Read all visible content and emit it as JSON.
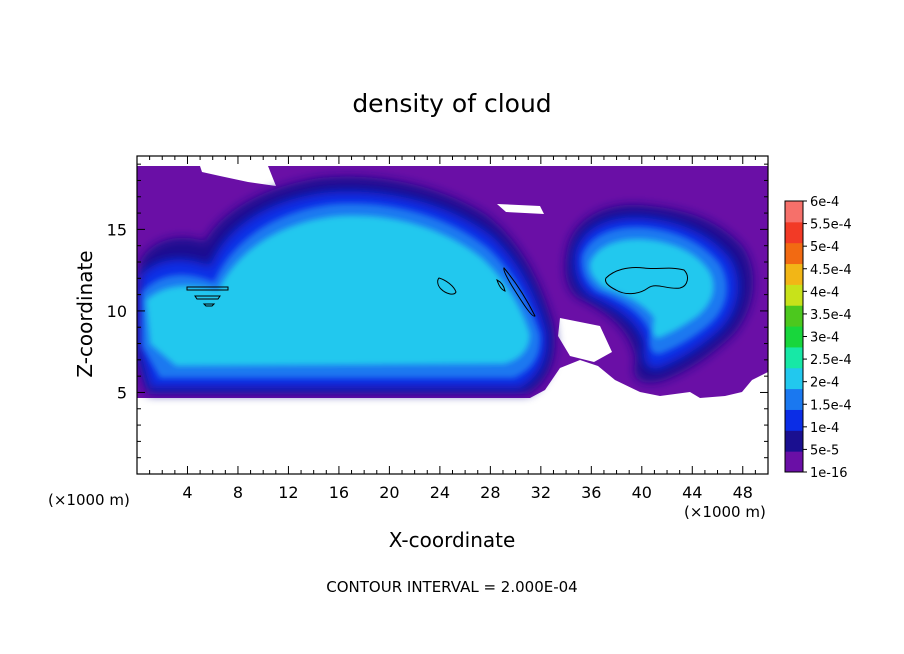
{
  "chart_data": {
    "type": "heatmap",
    "title": "density of cloud",
    "xlabel": "X-coordinate",
    "ylabel": "Z-coordinate",
    "x_unit_left": "(×1000 m)",
    "x_unit_right": "(×1000 m)",
    "xlim": [
      0,
      50
    ],
    "ylim": [
      0,
      19.5
    ],
    "x_ticks": [
      4,
      8,
      12,
      16,
      20,
      24,
      28,
      32,
      36,
      40,
      44,
      48
    ],
    "y_ticks": [
      5,
      10,
      15
    ],
    "footer": "CONTOUR INTERVAL = 2.000E-04",
    "colorbar": {
      "labels": [
        "1e-16",
        "5e-5",
        "1e-4",
        "1.5e-4",
        "2e-4",
        "2.5e-4",
        "3e-4",
        "3.5e-4",
        "4e-4",
        "4.5e-4",
        "5e-4",
        "5.5e-4",
        "6e-4"
      ],
      "colors": [
        "#6a0fa6",
        "#1a0f90",
        "#0b2de6",
        "#1a78f0",
        "#22c8ee",
        "#17e8a6",
        "#18d63c",
        "#4cc81e",
        "#c8e21a",
        "#f2b616",
        "#f26a12",
        "#f23a26",
        "#f6706a"
      ]
    },
    "regions": [
      {
        "name": "left-cloud",
        "x": [
          0,
          32
        ],
        "z": [
          5,
          18
        ]
      },
      {
        "name": "right-cloud",
        "x": [
          36,
          48
        ],
        "z": [
          6,
          17
        ]
      }
    ],
    "contour_level": 0.0002
  }
}
